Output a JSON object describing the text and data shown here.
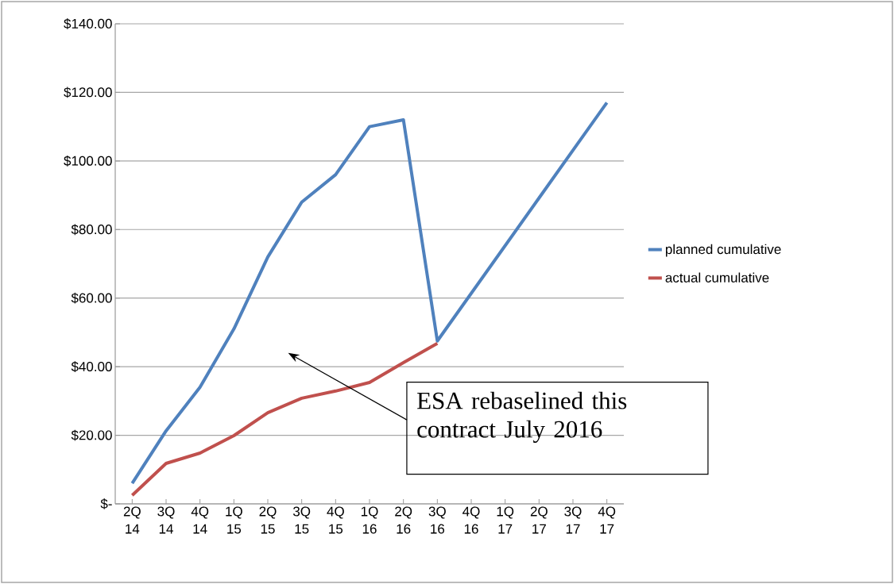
{
  "chart_data": {
    "type": "line",
    "categories": [
      "2Q 14",
      "3Q 14",
      "4Q 14",
      "1Q 15",
      "2Q 15",
      "3Q 15",
      "4Q 15",
      "1Q 16",
      "2Q 16",
      "3Q 16",
      "4Q 16",
      "1Q 17",
      "2Q 17",
      "3Q 17",
      "4Q 17"
    ],
    "series": [
      {
        "name": "planned cumulative",
        "color": "#4f81bd",
        "values": [
          6,
          21.3,
          34,
          51,
          72,
          88,
          96,
          110,
          112,
          47.5,
          61.4,
          75.3,
          89.2,
          103.1,
          117
        ]
      },
      {
        "name": "actual cumulative",
        "color": "#c0504d",
        "values": [
          2.5,
          11.8,
          14.8,
          19.9,
          26.6,
          30.8,
          32.9,
          35.4,
          41.2,
          46.8,
          null,
          null,
          null,
          null,
          null
        ]
      }
    ],
    "ylim": [
      0,
      140
    ],
    "yticks": [
      {
        "value": 0,
        "label": "$-"
      },
      {
        "value": 20,
        "label": "$20.00"
      },
      {
        "value": 40,
        "label": "$40.00"
      },
      {
        "value": 60,
        "label": "$60.00"
      },
      {
        "value": 80,
        "label": "$80.00"
      },
      {
        "value": 100,
        "label": "$100.00"
      },
      {
        "value": 120,
        "label": "$120.00"
      },
      {
        "value": 140,
        "label": "$140.00"
      }
    ],
    "grid": "y",
    "legend": "right",
    "marker": "none",
    "line_style": "solid",
    "annotations": [
      "ESA rebaselined this contract July 2016"
    ]
  }
}
